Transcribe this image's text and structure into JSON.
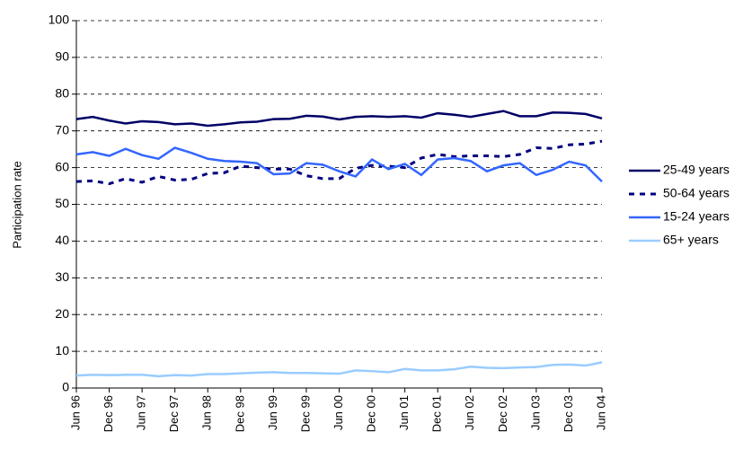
{
  "chart_data": {
    "type": "line",
    "y_label": "Participation rate",
    "categories": [
      "Jun 96",
      null,
      "Dec 96",
      null,
      "Jun 97",
      null,
      "Dec 97",
      null,
      "Jun 98",
      null,
      "Dec 98",
      null,
      "Jun 99",
      null,
      "Dec 99",
      null,
      "Jun 00",
      null,
      "Dec 00",
      null,
      "Jun 01",
      null,
      "Dec 01",
      null,
      "Jun 02",
      null,
      "Dec 02",
      null,
      "Jun 03",
      null,
      "Dec 03",
      null,
      "Jun 04"
    ],
    "series": [
      {
        "name": "25-49 years",
        "color": "#000066",
        "dash": false,
        "values": [
          73.2,
          73.8,
          72.8,
          72.0,
          72.6,
          72.4,
          71.8,
          72.0,
          71.4,
          71.8,
          72.3,
          72.5,
          73.2,
          73.3,
          74.1,
          73.9,
          73.1,
          73.8,
          74.0,
          73.8,
          74.0,
          73.6,
          74.8,
          74.4,
          73.8,
          74.6,
          75.4,
          74.0,
          74.0,
          75.0,
          74.9,
          74.6,
          73.4
        ]
      },
      {
        "name": "50-64 years",
        "color": "#000080",
        "dash": true,
        "values": [
          56.2,
          56.4,
          55.6,
          57.0,
          56.0,
          57.6,
          56.6,
          56.8,
          58.4,
          58.6,
          60.4,
          60.0,
          59.6,
          59.6,
          57.8,
          57.0,
          57.0,
          59.8,
          60.6,
          60.4,
          60.0,
          62.6,
          63.6,
          63.0,
          63.2,
          63.2,
          63.0,
          63.6,
          65.4,
          65.2,
          66.2,
          66.4,
          67.2
        ]
      },
      {
        "name": "15-24 years",
        "color": "#3366ff",
        "dash": false,
        "values": [
          63.6,
          64.2,
          63.2,
          65.1,
          63.4,
          62.4,
          65.4,
          64.0,
          62.4,
          61.8,
          61.6,
          61.2,
          58.2,
          58.4,
          61.2,
          60.8,
          59.0,
          57.6,
          62.2,
          59.6,
          61.0,
          58.0,
          62.2,
          62.6,
          61.8,
          59.0,
          60.6,
          61.2,
          58.0,
          59.4,
          61.6,
          60.6,
          56.2
        ]
      },
      {
        "name": "65+ years",
        "color": "#99ccff",
        "dash": false,
        "values": [
          3.4,
          3.6,
          3.5,
          3.6,
          3.6,
          3.2,
          3.5,
          3.4,
          3.8,
          3.8,
          4.0,
          4.2,
          4.3,
          4.1,
          4.1,
          4.0,
          3.9,
          4.8,
          4.6,
          4.3,
          5.2,
          4.8,
          4.8,
          5.1,
          5.8,
          5.5,
          5.4,
          5.6,
          5.7,
          6.3,
          6.4,
          6.1,
          7.0
        ]
      }
    ],
    "ylim": [
      0,
      100
    ],
    "yticks": [
      0,
      10,
      20,
      30,
      40,
      50,
      60,
      70,
      80,
      90,
      100
    ],
    "grid": true,
    "legend": "right"
  }
}
